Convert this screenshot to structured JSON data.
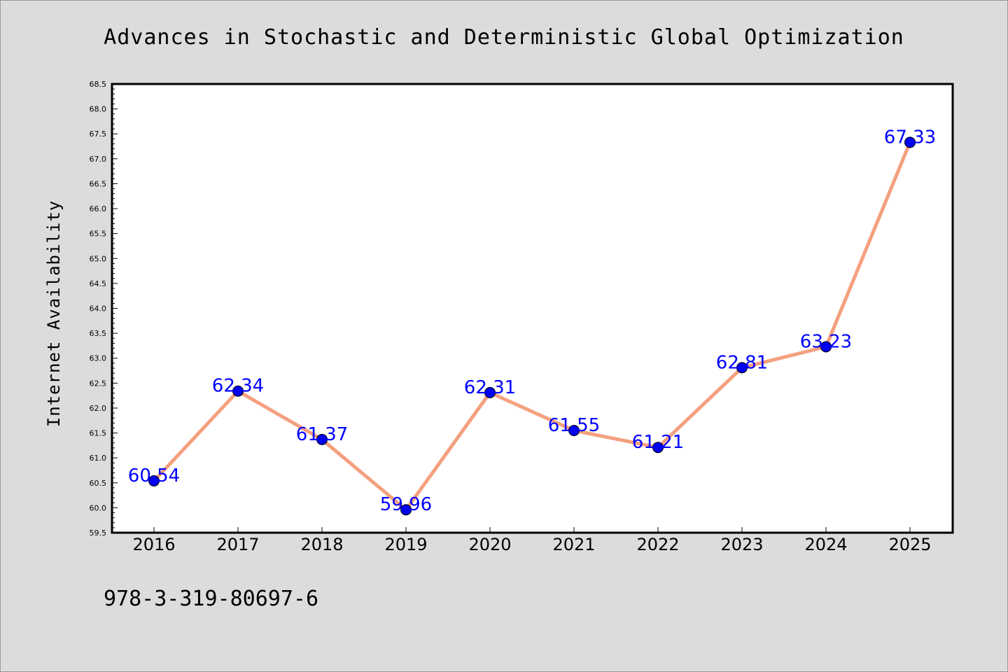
{
  "chart_data": {
    "type": "line",
    "title": "Advances in Stochastic and Deterministic Global Optimization",
    "xlabel": "",
    "ylabel": "Internet Availability",
    "categories": [
      "2016",
      "2017",
      "2018",
      "2019",
      "2020",
      "2021",
      "2022",
      "2023",
      "2024",
      "2025"
    ],
    "series": [
      {
        "values": [
          60.54,
          62.34,
          61.37,
          59.96,
          62.31,
          61.55,
          61.21,
          62.81,
          63.23,
          67.33
        ],
        "data_labels": [
          "60.54",
          "62.34",
          "61.37",
          "59.96",
          "62.31",
          "61.55",
          "61.21",
          "62.81",
          "63.23",
          "67.33"
        ]
      }
    ],
    "ylim": [
      59.5,
      68.5
    ],
    "yticks": [
      "59.5",
      "60.0",
      "60.5",
      "61.0",
      "61.5",
      "62.0",
      "62.5",
      "63.0",
      "63.5",
      "64.0",
      "64.5",
      "65.0",
      "65.5",
      "66.0",
      "66.5",
      "67.0",
      "67.5",
      "68.0",
      "68.5"
    ],
    "grid": false,
    "legend": "none",
    "colors": {
      "line": "#f4a07f",
      "marker": "#0000ee",
      "label": "#0000ff",
      "background": "#dcdcdc",
      "plot_background": "#ffffff"
    }
  },
  "footer": {
    "isbn": "978-3-319-80697-6"
  }
}
